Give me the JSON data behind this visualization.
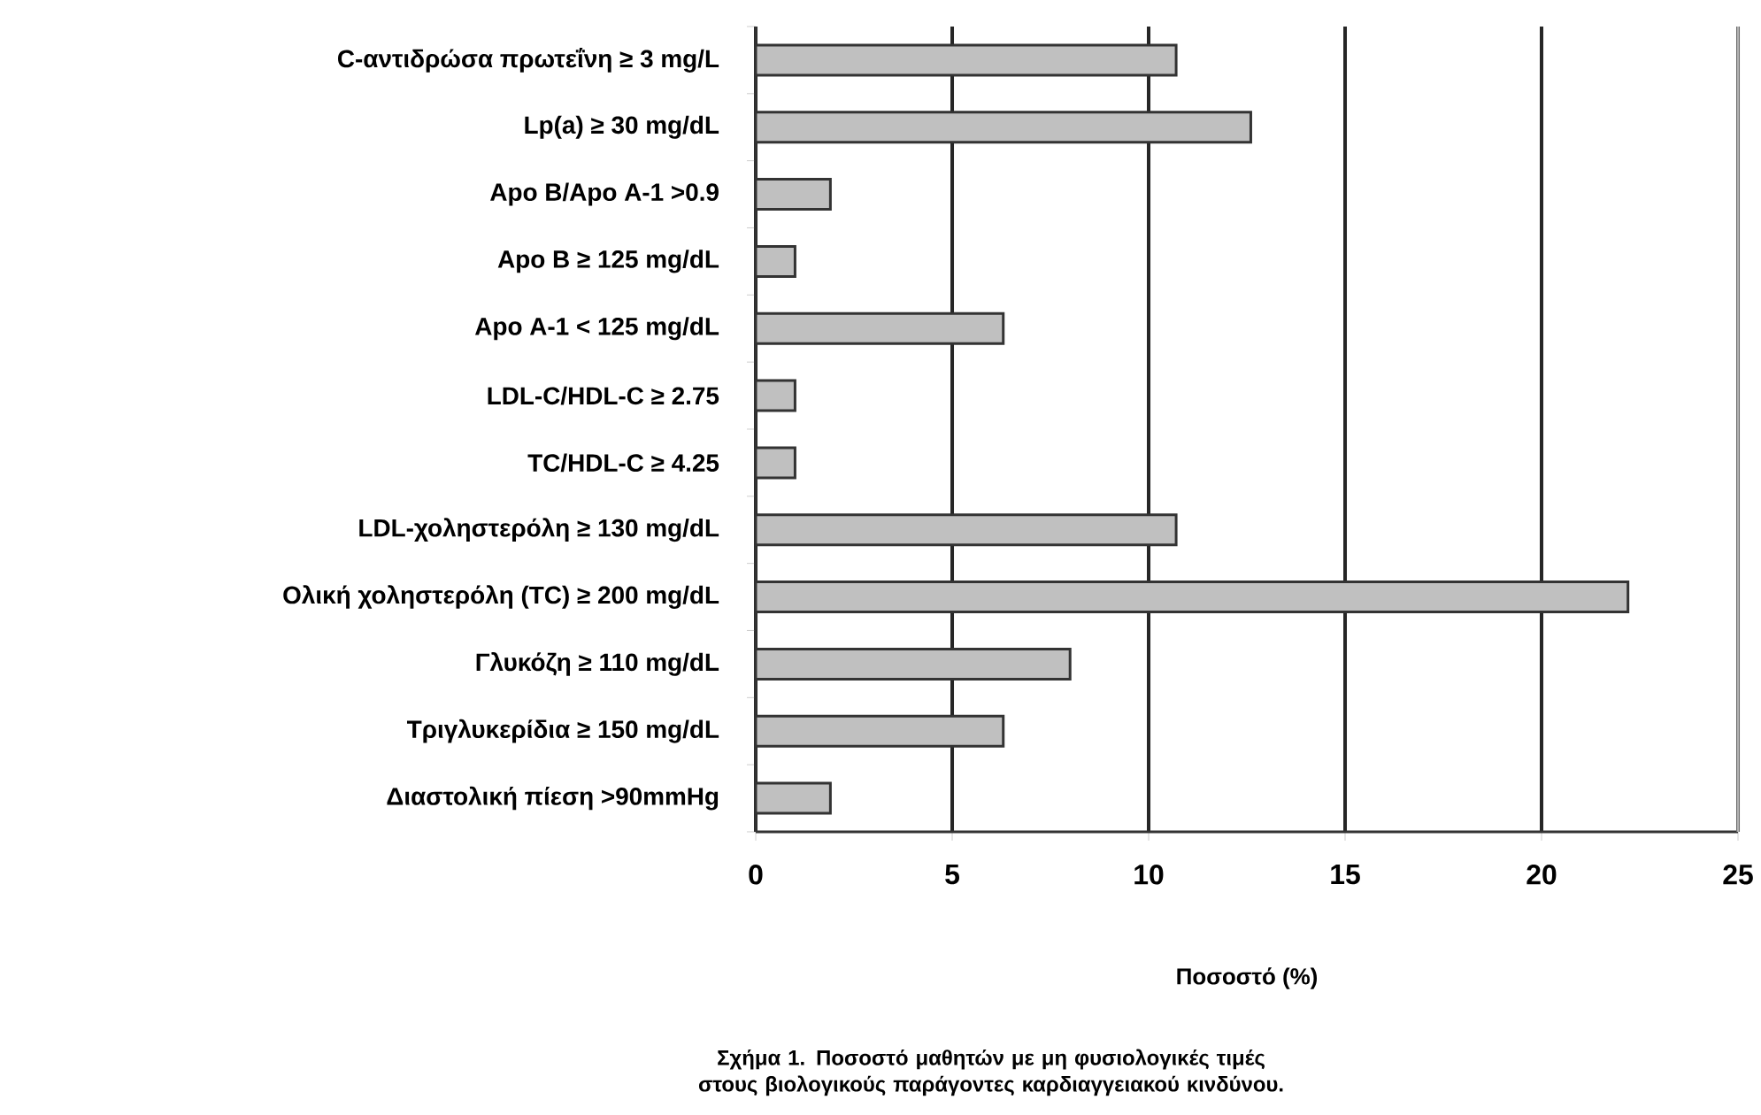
{
  "chart_data": {
    "type": "bar",
    "orientation": "horizontal",
    "xlabel": "Ποσοστό (%)",
    "annotations": [
      "Σχήμα 1. Ποσοστό μαθητών με μη φυσιολογικές τιμές στους βιολογικούς παράγοντες καρδιαγγειακού κινδύνου."
    ],
    "categories": [
      "C-αντιδρώσα πρωτεΐνη ≥ 3 mg/L",
      "Lp(a) ≥ 30 mg/dL",
      "Apo B/Apo A-1 >0.9",
      "Apo B ≥ 125 mg/dL",
      "Apo A-1 < 125 mg/dL",
      "LDL-C/HDL-C ≥ 2.75",
      "TC/HDL-C ≥ 4.25",
      "LDL-χοληστερόλη ≥ 130 mg/dL",
      "Ολική χοληστερόλη (TC) ≥ 200 mg/dL",
      "Γλυκόζη ≥ 110 mg/dL",
      "Τριγλυκερίδια ≥ 150 mg/dL",
      "Διαστολική πίεση >90mmHg"
    ],
    "values": [
      10.7,
      12.6,
      1.9,
      1.0,
      6.3,
      1.0,
      1.0,
      10.7,
      22.2,
      8.0,
      6.3,
      1.9
    ],
    "color": "#c0c0c0",
    "xlim": [
      0,
      25
    ],
    "xticks": [
      0,
      5,
      10,
      15,
      20,
      25
    ],
    "grid": "x"
  }
}
